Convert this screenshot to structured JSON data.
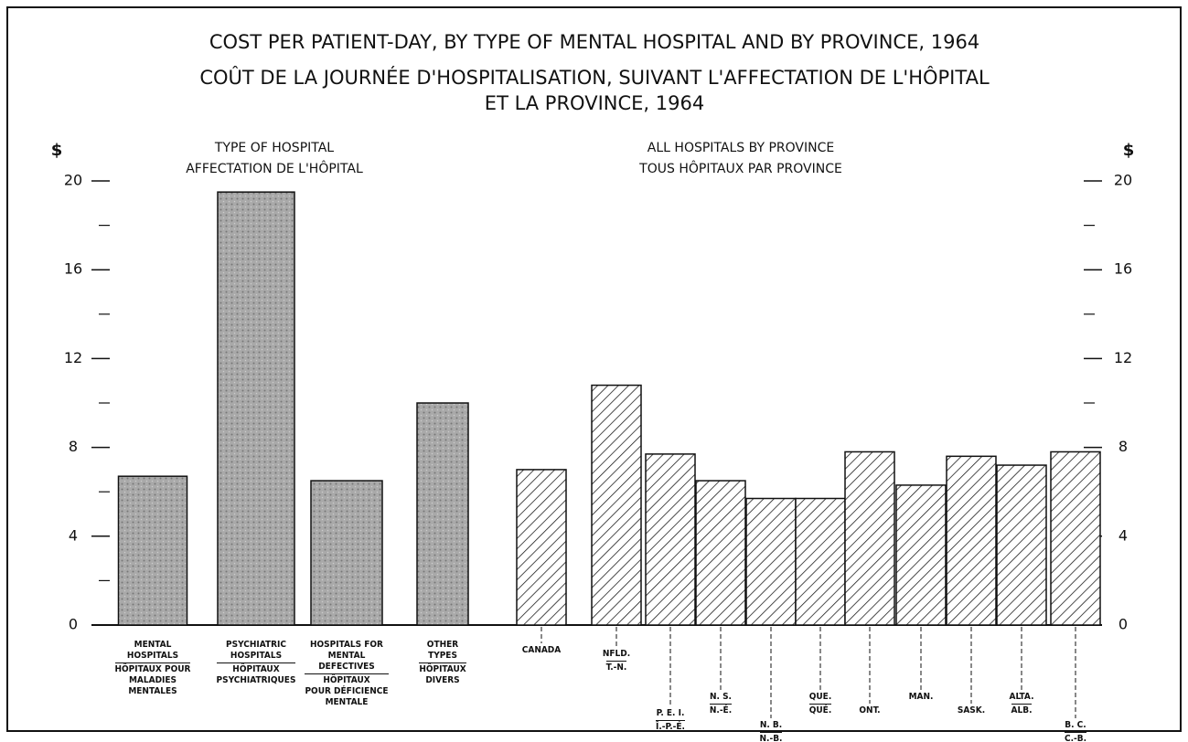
{
  "title": [
    "COST PER PATIENT-DAY, BY TYPE OF MENTAL HOSPITAL AND BY PROVINCE, 1964",
    "COÛT DE LA JOURNÉE D'HOSPITALISATION, SUIVANT L'AFFECTATION DE L'HÔPITAL",
    "ET LA PROVINCE, 1964"
  ],
  "chart_data": [
    {
      "type": "bar",
      "subtitle": [
        "TYPE OF HOSPITAL",
        "AFFECTATION DE L'HÔPITAL"
      ],
      "y_label": "$",
      "categories": [
        "MENTAL\nHOSPITALS",
        "PSYCHIATRIC\nHOSPITALS",
        "HOSPITALS FOR\nMENTAL\nDEFECTIVES",
        "OTHER\nTYPES"
      ],
      "categories_fr": [
        "HÔPITAUX POUR\nMALADIES\nMENTALES",
        "HÔPITAUX\nPSYCHIATRIQUES",
        "HÔPITAUX\nPOUR DÉFICIENCE\nMENTALE",
        "HÔPITAUX\nDIVERS"
      ],
      "values": [
        6.7,
        19.5,
        6.5,
        10.0
      ],
      "ylim": [
        0,
        20
      ],
      "yticks": [
        0,
        4,
        8,
        12,
        16,
        20
      ],
      "minor_yticks": [
        2,
        6,
        10,
        14,
        18
      ],
      "pattern": "stipple",
      "axis_side": "left"
    },
    {
      "type": "bar",
      "subtitle": [
        "ALL HOSPITALS BY PROVINCE",
        "TOUS HÔPITAUX PAR PROVINCE"
      ],
      "y_label": "$",
      "categories": [
        "CANADA",
        "NFLD.",
        "P. E. I.",
        "N. S.",
        "N. B.",
        "QUE.",
        "ONT.",
        "MAN.",
        "SASK.",
        "ALTA.",
        "B. C."
      ],
      "categories_fr": [
        null,
        "T.-N.",
        "Î.-P.-É.",
        "N.-É.",
        "N.-B.",
        "QUÉ.",
        null,
        null,
        null,
        "ALB.",
        "C.-B."
      ],
      "values": [
        7.0,
        10.8,
        7.7,
        6.5,
        5.7,
        5.7,
        7.8,
        6.3,
        7.6,
        7.2,
        7.8
      ],
      "ylim": [
        0,
        20
      ],
      "yticks": [
        0,
        4,
        8,
        12,
        16,
        20
      ],
      "minor_yticks": [
        2,
        6,
        10,
        14,
        18
      ],
      "pattern": "hatch",
      "axis_side": "right"
    }
  ]
}
